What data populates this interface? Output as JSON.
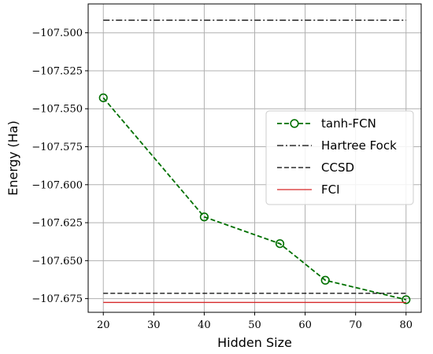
{
  "chart_data": {
    "type": "line",
    "title": "",
    "xlabel": "Hidden Size",
    "ylabel": "Energy (Ha)",
    "xlim": [
      17,
      83
    ],
    "ylim": [
      -107.684,
      -107.481
    ],
    "x_ticks": [
      20,
      30,
      40,
      50,
      60,
      70,
      80
    ],
    "x_tick_labels": [
      "20",
      "30",
      "40",
      "50",
      "60",
      "70",
      "80"
    ],
    "y_ticks": [
      -107.5,
      -107.525,
      -107.55,
      -107.575,
      -107.6,
      -107.625,
      -107.65,
      -107.675
    ],
    "y_tick_labels": [
      "−107.500",
      "−107.525",
      "−107.550",
      "−107.575",
      "−107.600",
      "−107.625",
      "−107.650",
      "−107.675"
    ],
    "grid": true,
    "legend_position": "center-right",
    "series": [
      {
        "name": "tanh-FCN",
        "kind": "line-marker",
        "color": "#007000",
        "linestyle": "dashed",
        "marker": "open-circle",
        "x": [
          20,
          40,
          55,
          64,
          80
        ],
        "y": [
          -107.5428,
          -107.6212,
          -107.6388,
          -107.6629,
          -107.6757
        ]
      },
      {
        "name": "Hartree Fock",
        "kind": "hline",
        "color": "#000000",
        "linestyle": "dashdot",
        "x": [
          20,
          80
        ],
        "y": -107.4917
      },
      {
        "name": "CCSD",
        "kind": "hline",
        "color": "#000000",
        "linestyle": "dashed",
        "x": [
          20,
          80
        ],
        "y": -107.6715
      },
      {
        "name": "FCI",
        "kind": "hline",
        "color": "#d62728",
        "linestyle": "solid",
        "x": [
          20,
          80
        ],
        "y": -107.6775
      }
    ]
  }
}
